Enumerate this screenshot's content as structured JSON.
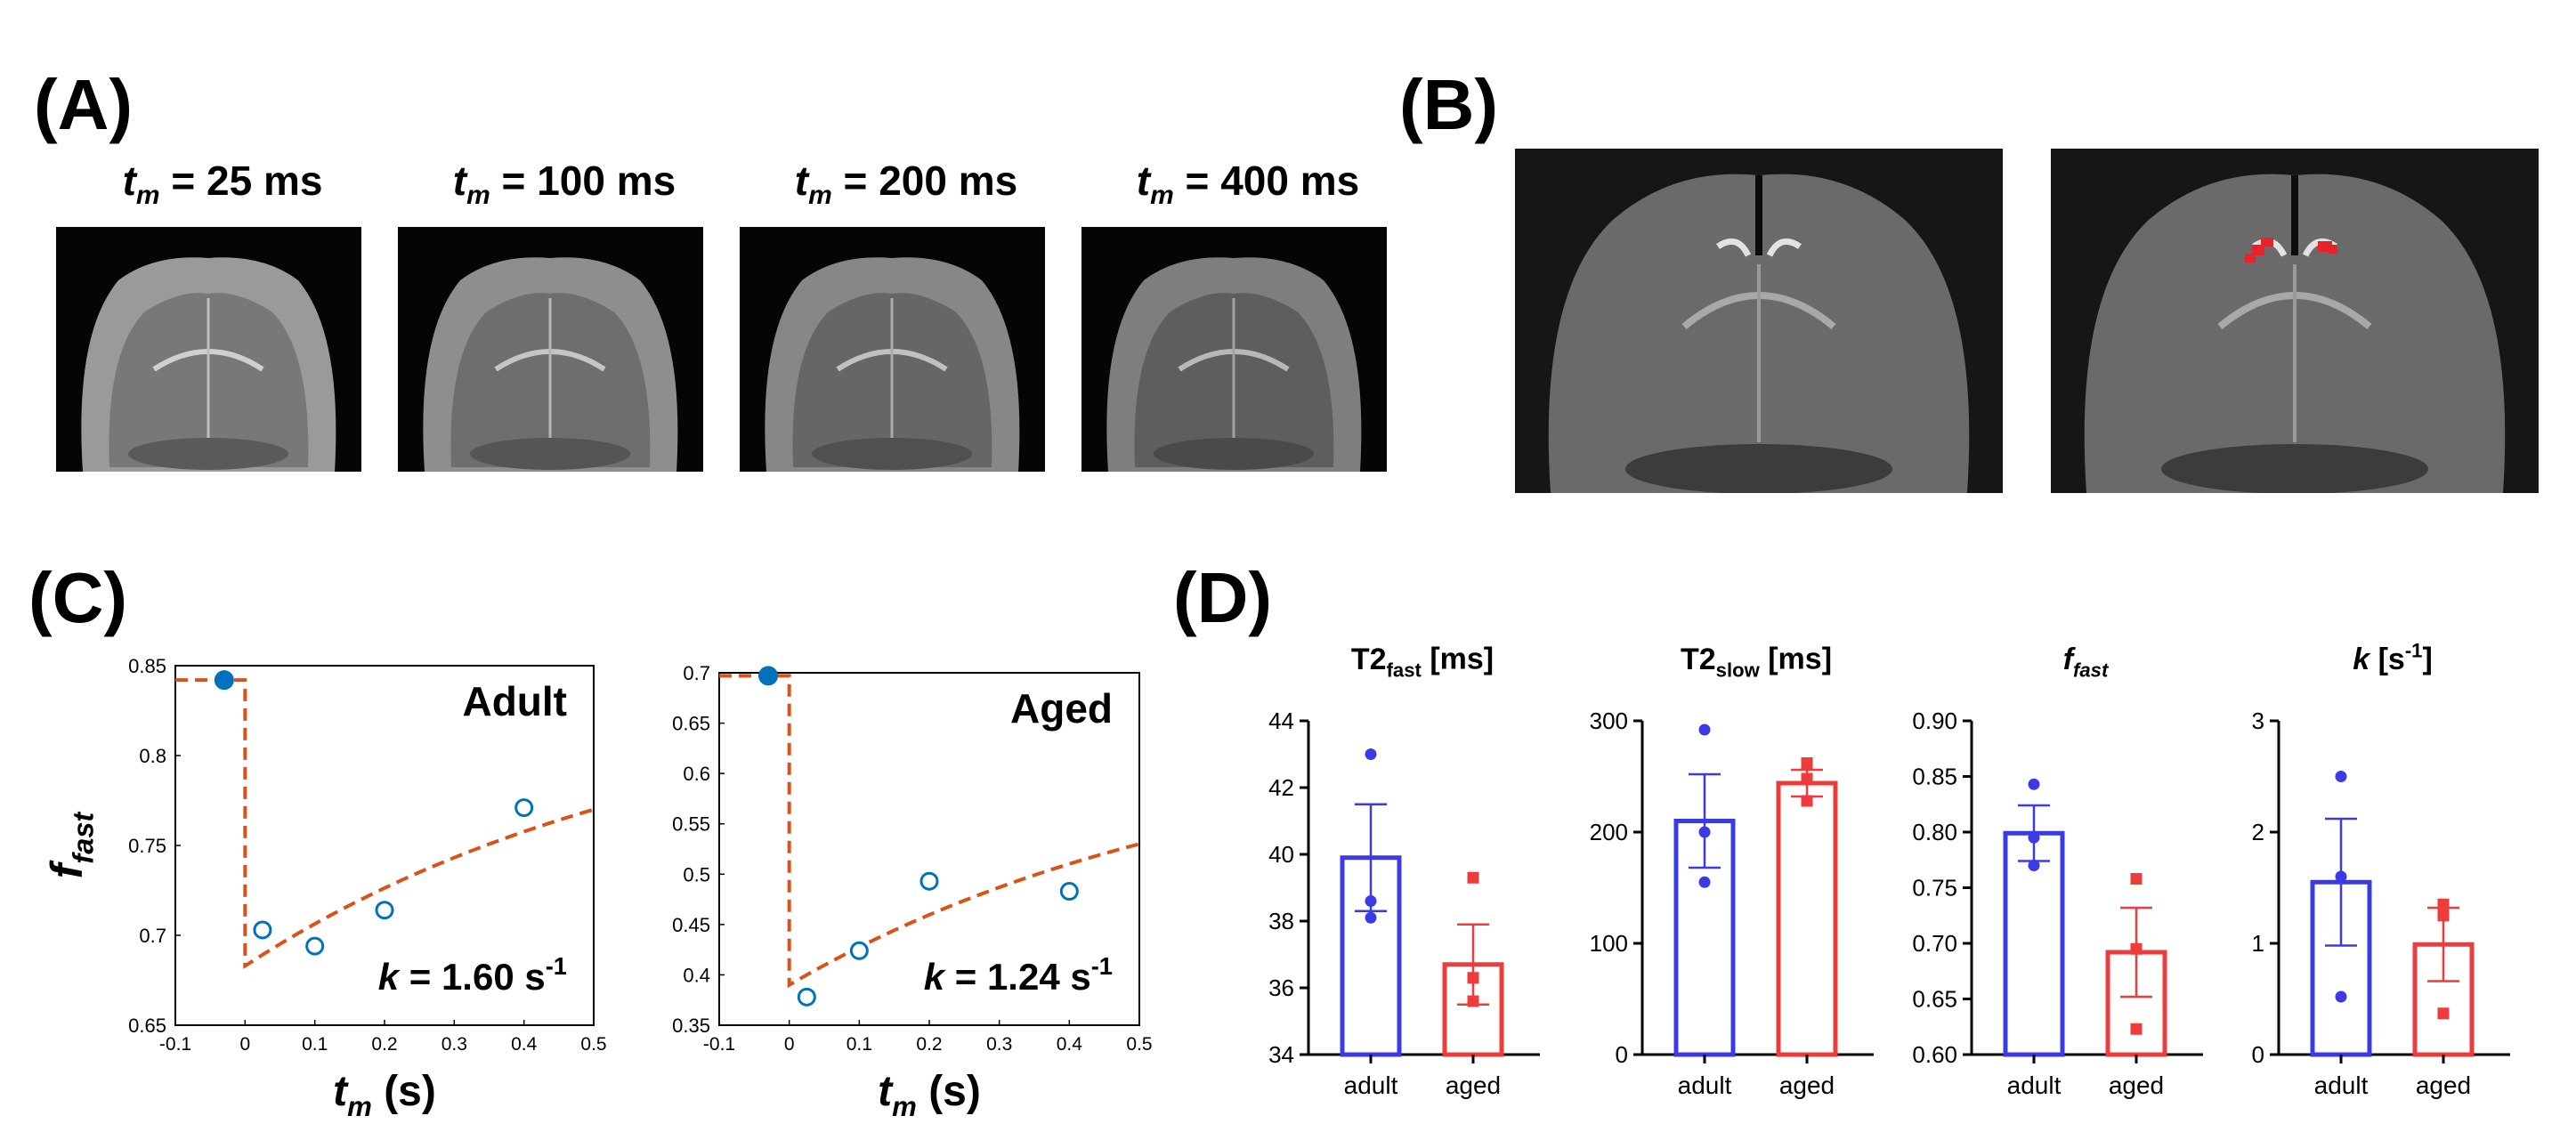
{
  "panel_labels": {
    "a": "(A)",
    "b": "(B)",
    "c": "(C)",
    "d": "(D)"
  },
  "panel_a": {
    "images": [
      {
        "var": "t",
        "sub": "m",
        "rest": " = 25 ms"
      },
      {
        "var": "t",
        "sub": "m",
        "rest": " = 100 ms"
      },
      {
        "var": "t",
        "sub": "m",
        "rest": " = 200 ms"
      },
      {
        "var": "t",
        "sub": "m",
        "rest": " = 400 ms"
      }
    ]
  },
  "panel_b": {
    "images": [
      "mri-b-plain",
      "mri-b-overlay"
    ],
    "overlay_color": "#e8222a"
  },
  "colors": {
    "fit_line": "#d95319",
    "marker": "#0072bd",
    "adult": "#3b3be6",
    "aged": "#ee3b3b"
  },
  "chart_data": [
    {
      "type": "scatter",
      "title": "Adult",
      "ylabel_var": "f",
      "ylabel_sub": "fast",
      "xlabel_var": "t",
      "xlabel_sub": "m",
      "xlabel_unit": " (s)",
      "xlim": [
        -0.1,
        0.5
      ],
      "ylim": [
        0.65,
        0.85
      ],
      "xticks": [
        -0.1,
        0,
        0.1,
        0.2,
        0.3,
        0.4,
        0.5
      ],
      "xtick_labels": [
        "-0.1",
        "0",
        "0.1",
        "0.2",
        "0.3",
        "0.4",
        "0.5"
      ],
      "yticks": [
        0.65,
        0.7,
        0.75,
        0.8,
        0.85
      ],
      "ytick_labels": [
        "0.65",
        "0.7",
        "0.75",
        "0.8",
        "0.85"
      ],
      "filled_point": {
        "x": -0.03,
        "y": 0.842
      },
      "open_points": [
        {
          "x": 0.025,
          "y": 0.703
        },
        {
          "x": 0.1,
          "y": 0.694
        },
        {
          "x": 0.2,
          "y": 0.714
        },
        {
          "x": 0.4,
          "y": 0.771
        }
      ],
      "fit": {
        "pre_x": [
          -0.1,
          0
        ],
        "pre_y": 0.842,
        "start_y": 0.683,
        "end_y": 0.77
      },
      "annotation": {
        "var": "k",
        "eq": " = 1.60 s",
        "sup": "-1"
      }
    },
    {
      "type": "scatter",
      "title": "Aged",
      "xlabel_var": "t",
      "xlabel_sub": "m",
      "xlabel_unit": " (s)",
      "xlim": [
        -0.1,
        0.5
      ],
      "ylim": [
        0.35,
        0.7
      ],
      "xticks": [
        -0.1,
        0,
        0.1,
        0.2,
        0.3,
        0.4,
        0.5
      ],
      "xtick_labels": [
        "-0.1",
        "0",
        "0.1",
        "0.2",
        "0.3",
        "0.4",
        "0.5"
      ],
      "yticks": [
        0.35,
        0.4,
        0.45,
        0.5,
        0.55,
        0.6,
        0.65,
        0.7
      ],
      "ytick_labels": [
        "0.35",
        "0.4",
        "0.45",
        "0.5",
        "0.55",
        "0.6",
        "0.65",
        "0.7"
      ],
      "filled_point": {
        "x": -0.03,
        "y": 0.697
      },
      "open_points": [
        {
          "x": 0.025,
          "y": 0.378
        },
        {
          "x": 0.1,
          "y": 0.424
        },
        {
          "x": 0.2,
          "y": 0.493
        },
        {
          "x": 0.4,
          "y": 0.483
        }
      ],
      "fit": {
        "pre_x": [
          -0.1,
          0
        ],
        "pre_y": 0.697,
        "start_y": 0.39,
        "end_y": 0.53
      },
      "annotation": {
        "var": "k",
        "eq": " = 1.24 s",
        "sup": "-1"
      }
    },
    {
      "type": "bar",
      "title_main": "T2",
      "title_sub": "fast",
      "title_var": "",
      "title_unit": " [ms]",
      "categories": [
        "adult",
        "aged"
      ],
      "values": [
        39.9,
        36.7
      ],
      "sem": [
        1.6,
        1.2
      ],
      "points": [
        [
          43.0,
          38.6,
          38.1
        ],
        [
          39.3,
          36.3,
          35.6
        ]
      ],
      "ylim": [
        34,
        44
      ],
      "yticks": [
        34,
        36,
        38,
        40,
        42,
        44
      ],
      "ytick_labels": [
        "34",
        "36",
        "38",
        "40",
        "42",
        "44"
      ]
    },
    {
      "type": "bar",
      "title_main": "T2",
      "title_sub": "slow",
      "title_var": "",
      "title_unit": " [ms]",
      "categories": [
        "adult",
        "aged"
      ],
      "values": [
        210,
        244
      ],
      "sem": [
        42,
        12
      ],
      "points": [
        [
          292,
          200,
          155
        ],
        [
          262,
          248,
          228
        ]
      ],
      "ylim": [
        0,
        300
      ],
      "yticks": [
        0,
        100,
        200,
        300
      ],
      "ytick_labels": [
        "0",
        "100",
        "200",
        "300"
      ]
    },
    {
      "type": "bar",
      "title_main": "",
      "title_sub": "fast",
      "title_var": "f",
      "title_unit": "",
      "categories": [
        "adult",
        "aged"
      ],
      "values": [
        0.799,
        0.692
      ],
      "sem": [
        0.025,
        0.04
      ],
      "points": [
        [
          0.843,
          0.795,
          0.77
        ],
        [
          0.758,
          0.695,
          0.623
        ]
      ],
      "ylim": [
        0.6,
        0.9
      ],
      "yticks": [
        0.6,
        0.65,
        0.7,
        0.75,
        0.8,
        0.85,
        0.9
      ],
      "ytick_labels": [
        "0.60",
        "0.65",
        "0.70",
        "0.75",
        "0.80",
        "0.85",
        "0.90"
      ]
    },
    {
      "type": "bar",
      "title_main": "",
      "title_sub": "",
      "title_var": "k",
      "title_unit": " [s",
      "title_sup": "-1",
      "title_close": "]",
      "categories": [
        "adult",
        "aged"
      ],
      "values": [
        1.55,
        0.99
      ],
      "sem": [
        0.57,
        0.33
      ],
      "points": [
        [
          2.5,
          1.6,
          0.52
        ],
        [
          1.35,
          1.25,
          0.37
        ]
      ],
      "ylim": [
        0,
        3
      ],
      "yticks": [
        0,
        1,
        2,
        3
      ],
      "ytick_labels": [
        "0",
        "1",
        "2",
        "3"
      ]
    }
  ]
}
